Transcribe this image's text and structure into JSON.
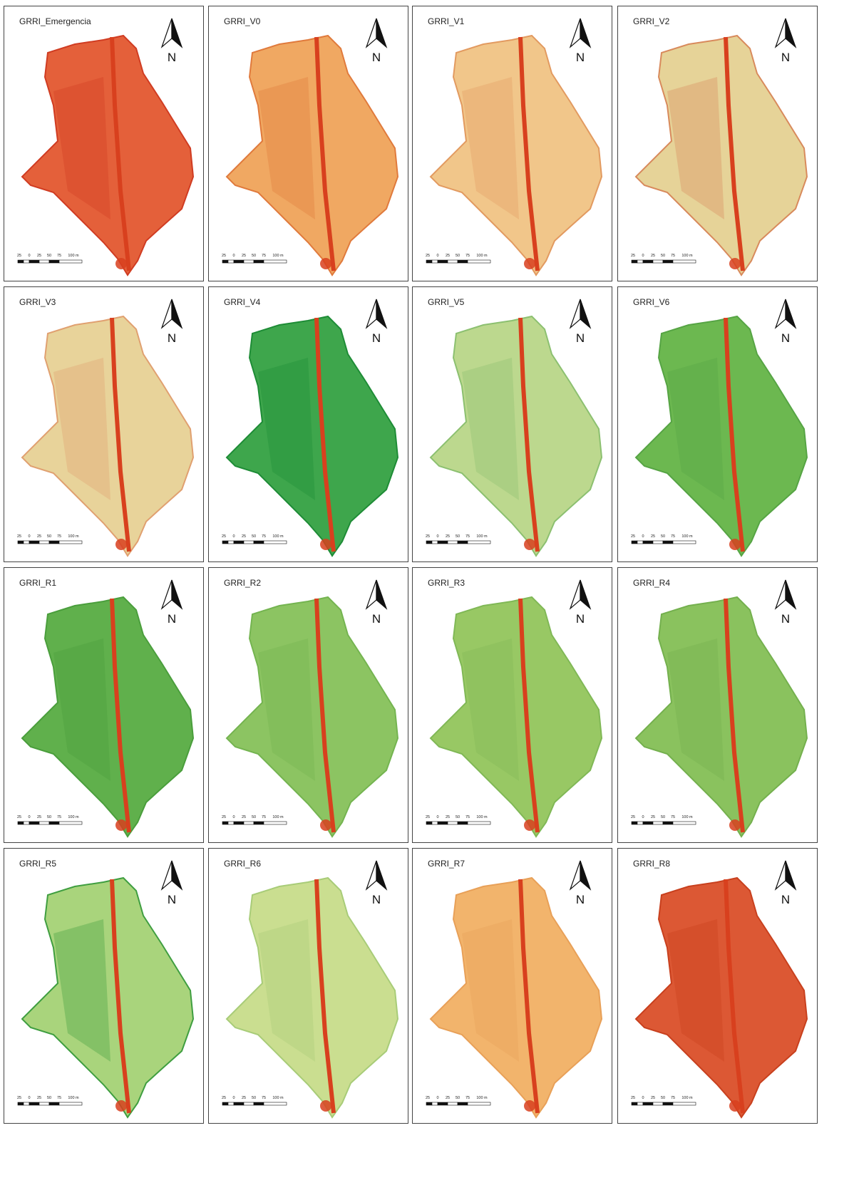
{
  "panels": [
    {
      "title": "GRRI_Emergencia"
    },
    {
      "title": "GRRI_V0"
    },
    {
      "title": "GRRI_V1"
    },
    {
      "title": "GRRI_V2"
    },
    {
      "title": "GRRI_V3"
    },
    {
      "title": "GRRI_V4"
    },
    {
      "title": "GRRI_V5"
    },
    {
      "title": "GRRI_V6"
    },
    {
      "title": "GRRI_R1"
    },
    {
      "title": "GRRI_R2"
    },
    {
      "title": "GRRI_R3"
    },
    {
      "title": "GRRI_R4"
    },
    {
      "title": "GRRI_R5"
    },
    {
      "title": "GRRI_R6"
    },
    {
      "title": "GRRI_R7"
    },
    {
      "title": "GRRI_R8"
    }
  ],
  "north_label": "N",
  "scale_labels": [
    "25",
    "0",
    "25",
    "50",
    "75",
    "100 m"
  ]
}
